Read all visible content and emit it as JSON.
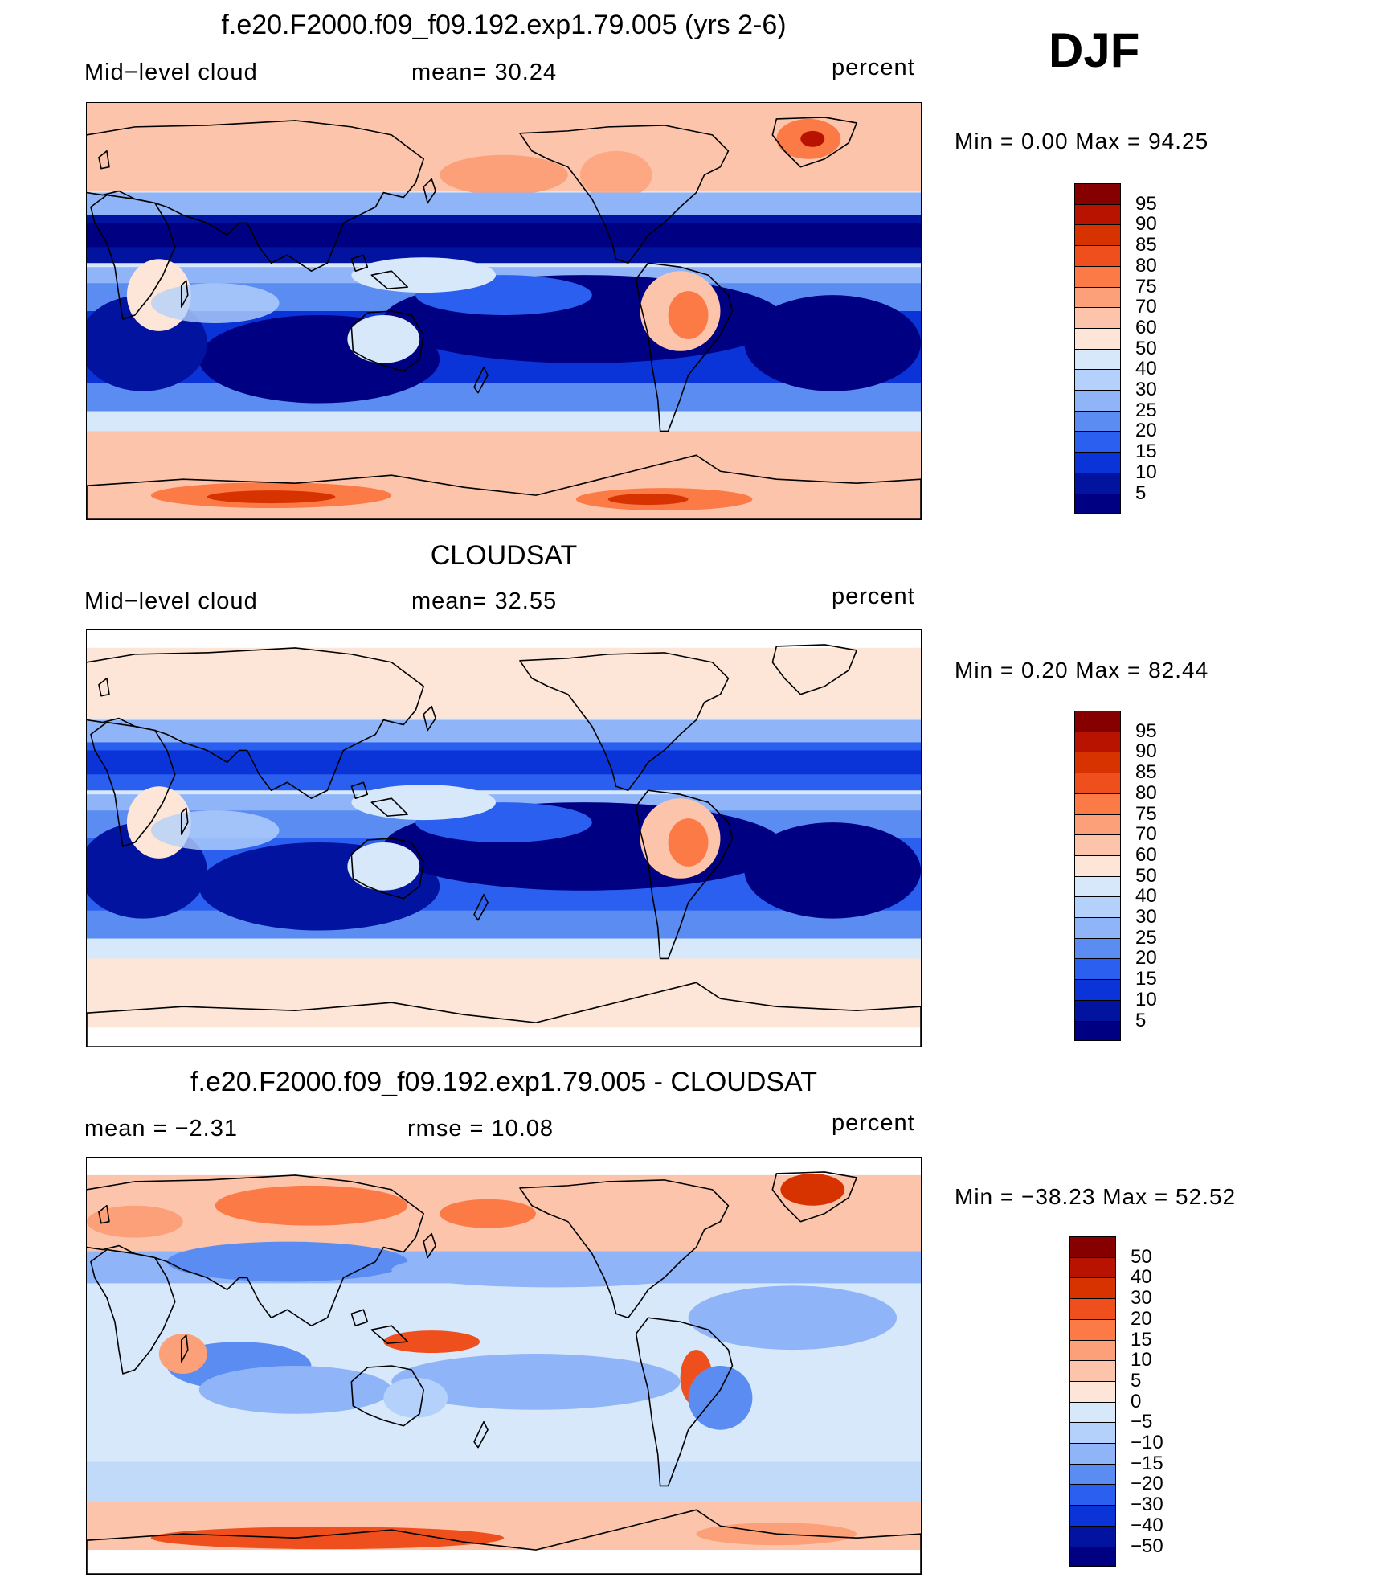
{
  "season": "DJF",
  "panels": [
    {
      "title": "f.e20.F2000.f09_f09.192.exp1.79.005 (yrs 2-6)",
      "left_label": "Mid−level cloud",
      "center_label": "mean=   30.24",
      "units": "percent",
      "min_label": "Min  =     0.00  Max  =    94.25",
      "levels": [
        "95",
        "90",
        "85",
        "80",
        "75",
        "70",
        "60",
        "50",
        "40",
        "30",
        "25",
        "20",
        "15",
        "10",
        "5"
      ],
      "colors": [
        "#870000",
        "#b81200",
        "#d73300",
        "#ef4f1c",
        "#fb7a46",
        "#fca079",
        "#fcc5ab",
        "#fde6d8",
        "#d7e8fb",
        "#b3d1fa",
        "#8fb4f7",
        "#5a8cf2",
        "#2a5ff0",
        "#0b34d8",
        "#02139f",
        "#000082"
      ],
      "map_type": "model"
    },
    {
      "title": "CLOUDSAT",
      "left_label": "Mid−level cloud",
      "center_label": "mean=   32.55",
      "units": "percent",
      "min_label": "Min  =     0.20  Max  =    82.44",
      "levels": [
        "95",
        "90",
        "85",
        "80",
        "75",
        "70",
        "60",
        "50",
        "40",
        "30",
        "25",
        "20",
        "15",
        "10",
        "5"
      ],
      "colors": [
        "#870000",
        "#b81200",
        "#d73300",
        "#ef4f1c",
        "#fb7a46",
        "#fca079",
        "#fcc5ab",
        "#fde6d8",
        "#d7e8fb",
        "#b3d1fa",
        "#8fb4f7",
        "#5a8cf2",
        "#2a5ff0",
        "#0b34d8",
        "#02139f",
        "#000082"
      ],
      "map_type": "obs"
    },
    {
      "title": "f.e20.F2000.f09_f09.192.exp1.79.005 - CLOUDSAT",
      "left_label": "mean  =    −2.31",
      "center_label": "rmse  =    10.08",
      "units": "percent",
      "min_label": "Min  =  −38.23  Max  =    52.52",
      "levels": [
        "50",
        "40",
        "30",
        "20",
        "15",
        "10",
        "5",
        "0",
        "−5",
        "−10",
        "−15",
        "−20",
        "−30",
        "−40",
        "−50"
      ],
      "colors": [
        "#870000",
        "#b81200",
        "#d73300",
        "#ef4f1c",
        "#fb7a46",
        "#fca079",
        "#fcc5ab",
        "#fde6d8",
        "#d7e8fb",
        "#b3d1fa",
        "#8fb4f7",
        "#5a8cf2",
        "#2a5ff0",
        "#0b34d8",
        "#02139f",
        "#000082"
      ],
      "map_type": "diff"
    }
  ]
}
